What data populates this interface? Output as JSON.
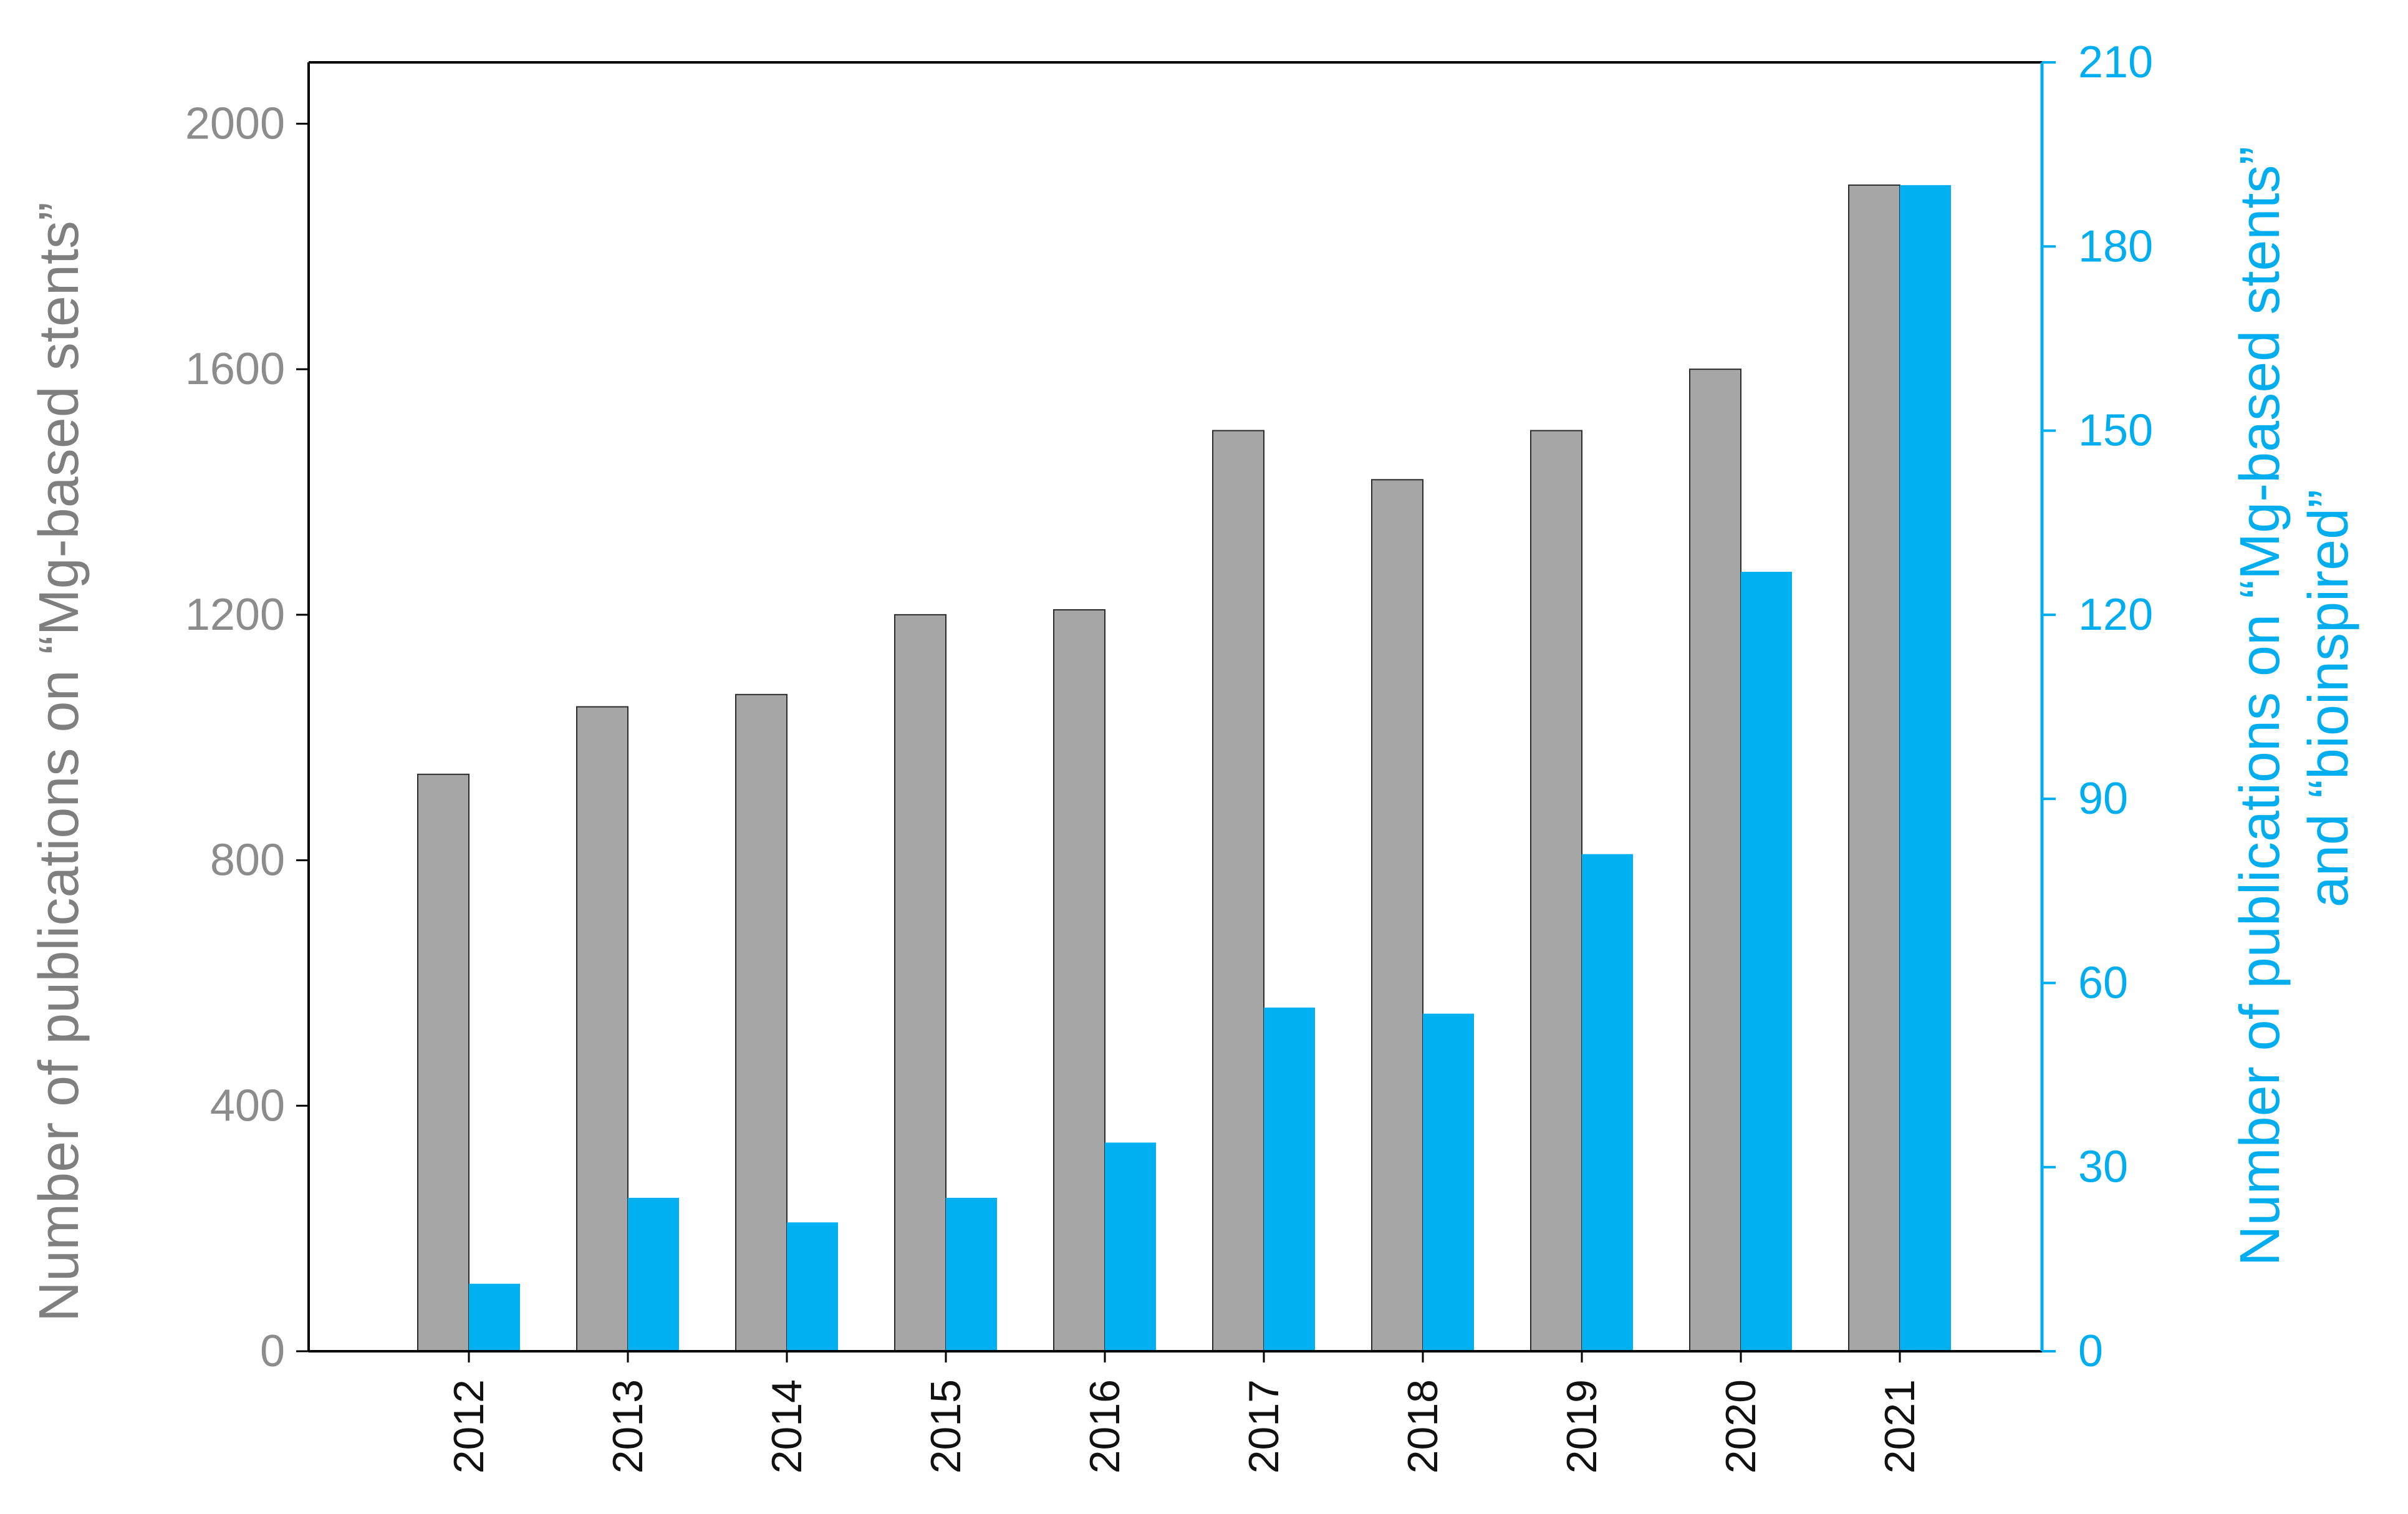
{
  "chart_data": {
    "type": "bar",
    "title": "",
    "xlabel": "",
    "categories": [
      "2012",
      "2013",
      "2014",
      "2015",
      "2016",
      "2017",
      "2018",
      "2019",
      "2020",
      "2021"
    ],
    "series": [
      {
        "axis": "left",
        "color": "#a6a6a6",
        "values": [
          940,
          1050,
          1070,
          1200,
          1208,
          1500,
          1420,
          1500,
          1600,
          1900
        ]
      },
      {
        "axis": "right",
        "color": "#00b0f0",
        "values": [
          11,
          25,
          21,
          25,
          34,
          56,
          55,
          81,
          127,
          190
        ]
      }
    ],
    "y_left": {
      "label": "Number of publications on “Mg-based stents”",
      "ylim": [
        0,
        2100
      ],
      "ticks": [
        "0",
        "400",
        "800",
        "1200",
        "1600",
        "2000"
      ],
      "color": "#8c8c8c"
    },
    "y_right": {
      "label_lines": [
        "Number of publications on “Mg-based stents”",
        "and “bioinspired”"
      ],
      "ylim": [
        0,
        210
      ],
      "ticks": [
        "0",
        "30",
        "60",
        "90",
        "120",
        "150",
        "180",
        "210"
      ],
      "color": "#00aeef"
    },
    "grid": false,
    "legend": "none"
  }
}
